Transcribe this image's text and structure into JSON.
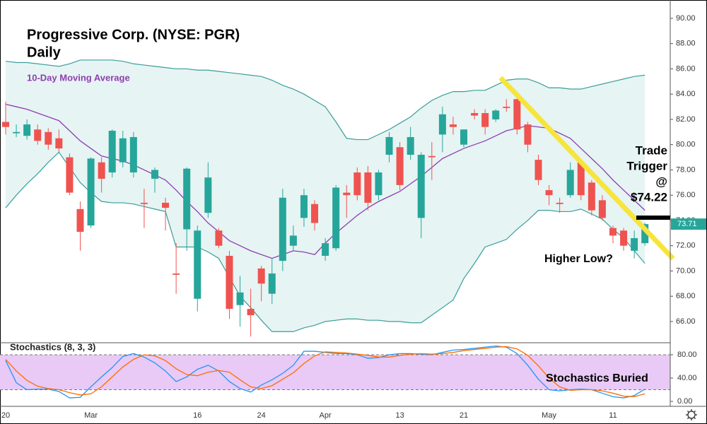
{
  "chart_data": [
    {
      "type": "candlestick",
      "title": "Progressive Corp. (NYSE: PGR)",
      "subtitle": "Daily",
      "categories": [
        "20",
        null,
        null,
        null,
        null,
        null,
        null,
        null,
        "Mar",
        null,
        null,
        null,
        null,
        null,
        null,
        null,
        null,
        null,
        "16",
        null,
        null,
        null,
        null,
        null,
        "24",
        null,
        null,
        null,
        null,
        null,
        "Apr",
        null,
        null,
        null,
        null,
        null,
        null,
        "13",
        null,
        null,
        null,
        null,
        null,
        "21",
        null,
        null,
        null,
        null,
        null,
        null,
        null,
        "May",
        null,
        null,
        null,
        null,
        null,
        "11",
        null,
        null,
        null
      ],
      "open": [
        81.8,
        80.9,
        80.7,
        81.2,
        81.0,
        80.5,
        79.0,
        74.9,
        73.6,
        78.6,
        77.8,
        78.6,
        77.8,
        75.4,
        77.3,
        75.4,
        69.8,
        73.3,
        67.8,
        74.6,
        73.2,
        71.2,
        67.3,
        67.0,
        70.2,
        68.2,
        70.8,
        72.0,
        74.2,
        75.3,
        71.2,
        71.8,
        76.2,
        77.8,
        77.8,
        76.0,
        79.2,
        79.8,
        79.2,
        74.2,
        79.1,
        80.8,
        81.6,
        80.0,
        82.5,
        82.5,
        82.0,
        83.0,
        83.6,
        81.6,
        78.8,
        76.4,
        75.4,
        76.0,
        78.6,
        77.0,
        75.6,
        73.4,
        73.2,
        71.6,
        72.2
      ],
      "high": [
        83.4,
        81.6,
        82.0,
        81.6,
        81.3,
        81.2,
        79.3,
        75.5,
        79.0,
        79.0,
        81.2,
        81.1,
        81.0,
        76.5,
        78.2,
        75.8,
        72.2,
        78.2,
        73.6,
        78.6,
        73.4,
        71.6,
        69.6,
        68.6,
        70.4,
        71.0,
        76.5,
        73.6,
        76.5,
        75.6,
        72.6,
        76.8,
        76.8,
        78.2,
        78.3,
        78.0,
        81.0,
        80.2,
        81.4,
        79.4,
        80.2,
        83.0,
        82.2,
        81.2,
        82.8,
        82.8,
        82.8,
        83.6,
        84.0,
        81.8,
        79.2,
        76.8,
        75.8,
        78.6,
        78.8,
        77.2,
        76.0,
        73.6,
        73.4,
        73.2,
        73.8
      ],
      "low": [
        80.8,
        80.6,
        80.4,
        80.0,
        79.6,
        79.4,
        76.0,
        71.6,
        73.4,
        76.2,
        77.4,
        78.2,
        77.4,
        73.4,
        76.2,
        73.2,
        68.2,
        71.6,
        66.8,
        74.2,
        71.8,
        66.2,
        65.6,
        64.8,
        67.6,
        67.4,
        70.0,
        71.6,
        73.5,
        73.2,
        70.8,
        71.6,
        74.2,
        75.6,
        74.8,
        75.6,
        78.6,
        76.4,
        78.8,
        72.6,
        77.2,
        79.4,
        80.8,
        79.8,
        82.0,
        80.8,
        81.8,
        82.6,
        80.8,
        79.4,
        76.8,
        75.2,
        74.6,
        75.8,
        75.6,
        74.4,
        74.0,
        72.2,
        71.6,
        71.0,
        72.0
      ],
      "close": [
        81.4,
        81.0,
        81.6,
        80.3,
        80.0,
        79.7,
        76.2,
        73.1,
        78.9,
        77.3,
        81.1,
        80.5,
        80.6,
        75.3,
        78.0,
        75.0,
        69.7,
        78.1,
        73.2,
        77.4,
        72.0,
        67.0,
        68.3,
        66.5,
        69.0,
        69.8,
        75.8,
        72.8,
        76.0,
        73.8,
        72.2,
        76.6,
        76.0,
        76.0,
        75.4,
        77.8,
        80.6,
        76.8,
        80.6,
        79.2,
        79.0,
        82.4,
        81.4,
        81.2,
        82.3,
        81.4,
        82.7,
        82.9,
        81.2,
        80.0,
        77.2,
        76.0,
        75.3,
        78.0,
        76.0,
        74.8,
        74.2,
        72.8,
        72.0,
        72.6,
        73.71
      ],
      "up_color": "#26a69a",
      "down_color": "#ef5350",
      "bands": [
        {
          "color": "#3a9e9a",
          "values": [
            86.6,
            86.5,
            86.5,
            86.4,
            86.3,
            86.2,
            86.4,
            86.7,
            86.7,
            86.7,
            86.7,
            86.6,
            86.4,
            86.3,
            86.2,
            86.1,
            86.0,
            86.0,
            85.9,
            85.9,
            85.8,
            85.7,
            85.6,
            85.5,
            85.4,
            85.1,
            84.7,
            84.4,
            84.0,
            83.5,
            83.0,
            81.8,
            80.5,
            80.4,
            80.4,
            80.8,
            81.2,
            81.7,
            82.2,
            82.9,
            83.5,
            83.9,
            84.2,
            84.2,
            84.3,
            84.3,
            84.7,
            85.1,
            85.2,
            85.2,
            84.9,
            84.5,
            84.5,
            84.4,
            84.4,
            84.6,
            84.8,
            85.0,
            85.2,
            85.4,
            85.5
          ]
        },
        {
          "color": "#3a9e9a",
          "values": [
            75.0,
            76.0,
            76.9,
            77.7,
            78.6,
            79.4,
            78.2,
            77.0,
            76.2,
            75.5,
            75.4,
            75.4,
            75.3,
            75.1,
            74.9,
            74.7,
            71.9,
            71.9,
            71.9,
            71.5,
            71.0,
            69.5,
            68.0,
            67.1,
            66.1,
            65.2,
            65.2,
            65.2,
            65.5,
            65.7,
            66.0,
            66.1,
            66.2,
            66.2,
            66.1,
            66.1,
            66.0,
            66.0,
            65.9,
            65.9,
            66.5,
            67.1,
            67.7,
            69.4,
            70.6,
            71.9,
            72.2,
            72.5,
            73.3,
            74.0,
            74.8,
            74.8,
            74.7,
            74.7,
            74.9,
            74.5,
            74.1,
            73.3,
            72.6,
            71.6,
            70.6
          ]
        }
      ],
      "band_fill": "#e6f4f3",
      "moving_average": {
        "name": "10-Day Moving Average",
        "color": "#8e3fb0",
        "values": [
          83.2,
          83.0,
          82.8,
          82.5,
          82.2,
          81.9,
          81.1,
          80.3,
          79.7,
          79.1,
          78.9,
          78.7,
          78.4,
          78.0,
          77.6,
          77.2,
          76.4,
          75.5,
          74.7,
          73.8,
          73.1,
          72.4,
          72.0,
          71.6,
          71.3,
          71.0,
          71.3,
          71.6,
          71.5,
          71.3,
          72.2,
          73.0,
          73.7,
          74.4,
          75.0,
          75.5,
          75.9,
          76.3,
          76.9,
          77.5,
          78.2,
          78.9,
          79.3,
          79.7,
          80.0,
          80.3,
          80.7,
          81.1,
          81.3,
          81.5,
          81.4,
          81.3,
          80.9,
          80.5,
          79.7,
          78.9,
          78.1,
          77.2,
          76.4,
          75.6,
          74.8
        ]
      },
      "ylim": [
        64.32,
        91.45
      ],
      "yticks": [
        {
          "value": 66,
          "label": "66.00"
        },
        {
          "value": 68,
          "label": "68.00"
        },
        {
          "value": 70,
          "label": "70.00"
        },
        {
          "value": 72,
          "label": "72.00"
        },
        {
          "value": 74,
          "label": "74.00"
        },
        {
          "value": 76,
          "label": "76.00"
        },
        {
          "value": 78,
          "label": "78.00"
        },
        {
          "value": 80,
          "label": "80.00"
        },
        {
          "value": 82,
          "label": "82.00"
        },
        {
          "value": 84,
          "label": "84.00"
        },
        {
          "value": 86,
          "label": "86.00"
        },
        {
          "value": 88,
          "label": "88.00"
        },
        {
          "value": 90,
          "label": "90.00"
        }
      ],
      "trigger": {
        "label": [
          "Trade",
          "Trigger",
          "@",
          "$74.22"
        ],
        "value": 74.22
      },
      "annotations": [
        "Higher Low?"
      ]
    },
    {
      "type": "line",
      "title": "Stochastics (8, 3, 3)",
      "series": [
        {
          "color": "#2196f3",
          "values": [
            70,
            32,
            20,
            21,
            21,
            17,
            6,
            7,
            25,
            42,
            58,
            77,
            82,
            76,
            66,
            52,
            34,
            42,
            55,
            62,
            52,
            34,
            22,
            16,
            28,
            37,
            48,
            62,
            86,
            86,
            84,
            82,
            82,
            80,
            74,
            75,
            80,
            82,
            82,
            81,
            80,
            84,
            88,
            89,
            91,
            93,
            95,
            93,
            82,
            62,
            38,
            20,
            18,
            20,
            21,
            20,
            14,
            8,
            6,
            10,
            21
          ]
        },
        {
          "color": "#ff6d00",
          "values": [
            72,
            52,
            36,
            26,
            22,
            20,
            15,
            11,
            13,
            25,
            42,
            59,
            72,
            80,
            78,
            70,
            56,
            46,
            44,
            50,
            53,
            50,
            37,
            25,
            22,
            27,
            38,
            49,
            65,
            78,
            85,
            84,
            83,
            81,
            79,
            76,
            76,
            79,
            81,
            82,
            81,
            82,
            84,
            87,
            89,
            91,
            93,
            94,
            90,
            79,
            61,
            40,
            25,
            19,
            20,
            20,
            18,
            14,
            9,
            8,
            13
          ]
        }
      ],
      "band": [
        20,
        80
      ],
      "band_color": "#e9c9f6",
      "ylim": [
        -8.5,
        100.6
      ],
      "yticks": [
        {
          "value": 0,
          "label": "0.00"
        },
        {
          "value": 40,
          "label": "40.00"
        },
        {
          "value": 80,
          "label": "80.00"
        }
      ],
      "annotations": [
        "Stochastics Buried"
      ]
    }
  ]
}
